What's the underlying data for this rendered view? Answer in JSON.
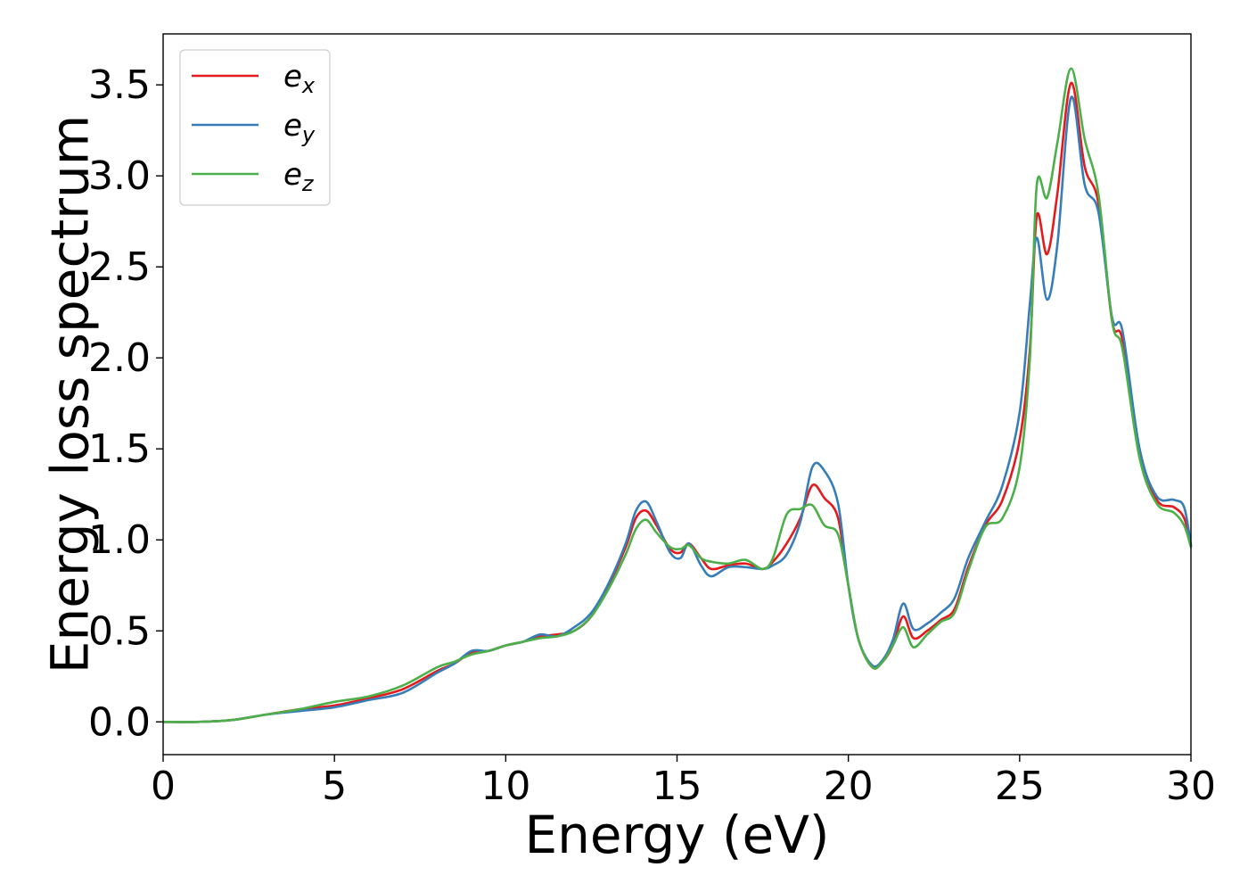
{
  "chart_data": {
    "type": "line",
    "title": "",
    "xlabel": "Energy (eV)",
    "ylabel": "Energy loss spectrum",
    "xlim": [
      0,
      30
    ],
    "ylim": [
      -0.18,
      3.78
    ],
    "x_ticks": [
      "0",
      "5",
      "10",
      "15",
      "20",
      "25",
      "30"
    ],
    "y_ticks": [
      "0.0",
      "0.5",
      "1.0",
      "1.5",
      "2.0",
      "2.5",
      "3.0",
      "3.5"
    ],
    "grid": false,
    "legend_position": "top-left",
    "series": [
      {
        "name": "e",
        "subscript": "x",
        "color": "#e41a1c",
        "points": [
          [
            0,
            0
          ],
          [
            1,
            0
          ],
          [
            2,
            0.01
          ],
          [
            3,
            0.04
          ],
          [
            4,
            0.07
          ],
          [
            5,
            0.09
          ],
          [
            6,
            0.13
          ],
          [
            7,
            0.18
          ],
          [
            8,
            0.28
          ],
          [
            8.5,
            0.32
          ],
          [
            9,
            0.38
          ],
          [
            9.5,
            0.39
          ],
          [
            10,
            0.42
          ],
          [
            10.5,
            0.44
          ],
          [
            11,
            0.47
          ],
          [
            11.5,
            0.48
          ],
          [
            12,
            0.5
          ],
          [
            12.5,
            0.58
          ],
          [
            13,
            0.75
          ],
          [
            13.5,
            0.96
          ],
          [
            13.8,
            1.12
          ],
          [
            14.1,
            1.16
          ],
          [
            14.4,
            1.08
          ],
          [
            14.8,
            0.95
          ],
          [
            15.1,
            0.93
          ],
          [
            15.35,
            0.98
          ],
          [
            15.7,
            0.9
          ],
          [
            16,
            0.84
          ],
          [
            16.5,
            0.86
          ],
          [
            17,
            0.87
          ],
          [
            17.5,
            0.84
          ],
          [
            17.8,
            0.88
          ],
          [
            18.2,
            0.98
          ],
          [
            18.6,
            1.12
          ],
          [
            18.95,
            1.3
          ],
          [
            19.3,
            1.23
          ],
          [
            19.7,
            1.12
          ],
          [
            20,
            0.75
          ],
          [
            20.3,
            0.45
          ],
          [
            20.7,
            0.3
          ],
          [
            21,
            0.33
          ],
          [
            21.3,
            0.42
          ],
          [
            21.6,
            0.58
          ],
          [
            21.9,
            0.46
          ],
          [
            22.3,
            0.5
          ],
          [
            22.7,
            0.56
          ],
          [
            23.1,
            0.62
          ],
          [
            23.5,
            0.85
          ],
          [
            24,
            1.08
          ],
          [
            24.5,
            1.22
          ],
          [
            25,
            1.55
          ],
          [
            25.3,
            2.05
          ],
          [
            25.5,
            2.78
          ],
          [
            25.8,
            2.57
          ],
          [
            26.1,
            2.9
          ],
          [
            26.5,
            3.51
          ],
          [
            26.9,
            3.05
          ],
          [
            27.3,
            2.85
          ],
          [
            27.7,
            2.2
          ],
          [
            28,
            2.1
          ],
          [
            28.5,
            1.5
          ],
          [
            29,
            1.22
          ],
          [
            29.5,
            1.18
          ],
          [
            29.8,
            1.12
          ],
          [
            30,
            0.97
          ]
        ]
      },
      {
        "name": "e",
        "subscript": "y",
        "color": "#377eb8",
        "points": [
          [
            0,
            0
          ],
          [
            1,
            0
          ],
          [
            2,
            0.01
          ],
          [
            3,
            0.04
          ],
          [
            4,
            0.06
          ],
          [
            5,
            0.08
          ],
          [
            6,
            0.12
          ],
          [
            7,
            0.16
          ],
          [
            8,
            0.27
          ],
          [
            8.5,
            0.32
          ],
          [
            9,
            0.39
          ],
          [
            9.5,
            0.39
          ],
          [
            10,
            0.42
          ],
          [
            10.5,
            0.44
          ],
          [
            11,
            0.48
          ],
          [
            11.5,
            0.47
          ],
          [
            12,
            0.52
          ],
          [
            12.5,
            0.6
          ],
          [
            13,
            0.76
          ],
          [
            13.5,
            0.98
          ],
          [
            13.8,
            1.16
          ],
          [
            14.1,
            1.21
          ],
          [
            14.4,
            1.1
          ],
          [
            14.8,
            0.93
          ],
          [
            15.1,
            0.9
          ],
          [
            15.35,
            0.98
          ],
          [
            15.7,
            0.86
          ],
          [
            16,
            0.8
          ],
          [
            16.5,
            0.85
          ],
          [
            17,
            0.85
          ],
          [
            17.5,
            0.84
          ],
          [
            17.8,
            0.86
          ],
          [
            18.2,
            0.92
          ],
          [
            18.6,
            1.1
          ],
          [
            18.95,
            1.4
          ],
          [
            19.3,
            1.38
          ],
          [
            19.7,
            1.2
          ],
          [
            20,
            0.75
          ],
          [
            20.3,
            0.45
          ],
          [
            20.7,
            0.31
          ],
          [
            21,
            0.34
          ],
          [
            21.3,
            0.45
          ],
          [
            21.6,
            0.65
          ],
          [
            21.9,
            0.51
          ],
          [
            22.3,
            0.54
          ],
          [
            22.7,
            0.6
          ],
          [
            23.1,
            0.68
          ],
          [
            23.5,
            0.9
          ],
          [
            24,
            1.1
          ],
          [
            24.5,
            1.3
          ],
          [
            25,
            1.7
          ],
          [
            25.3,
            2.3
          ],
          [
            25.5,
            2.66
          ],
          [
            25.8,
            2.32
          ],
          [
            26.1,
            2.62
          ],
          [
            26.5,
            3.43
          ],
          [
            26.9,
            2.95
          ],
          [
            27.3,
            2.8
          ],
          [
            27.7,
            2.22
          ],
          [
            28,
            2.15
          ],
          [
            28.5,
            1.5
          ],
          [
            29,
            1.24
          ],
          [
            29.5,
            1.22
          ],
          [
            29.8,
            1.18
          ],
          [
            30,
            0.97
          ]
        ]
      },
      {
        "name": "e",
        "subscript": "z",
        "color": "#4daf4a",
        "points": [
          [
            0,
            0
          ],
          [
            1,
            0
          ],
          [
            2,
            0.01
          ],
          [
            3,
            0.04
          ],
          [
            4,
            0.07
          ],
          [
            5,
            0.11
          ],
          [
            6,
            0.14
          ],
          [
            7,
            0.2
          ],
          [
            8,
            0.3
          ],
          [
            8.5,
            0.33
          ],
          [
            9,
            0.37
          ],
          [
            9.5,
            0.39
          ],
          [
            10,
            0.42
          ],
          [
            10.5,
            0.44
          ],
          [
            11,
            0.46
          ],
          [
            11.5,
            0.47
          ],
          [
            12,
            0.5
          ],
          [
            12.5,
            0.58
          ],
          [
            13,
            0.73
          ],
          [
            13.5,
            0.92
          ],
          [
            13.8,
            1.06
          ],
          [
            14.1,
            1.11
          ],
          [
            14.4,
            1.04
          ],
          [
            14.8,
            0.96
          ],
          [
            15.1,
            0.95
          ],
          [
            15.35,
            0.97
          ],
          [
            15.7,
            0.9
          ],
          [
            16,
            0.88
          ],
          [
            16.5,
            0.87
          ],
          [
            17,
            0.89
          ],
          [
            17.5,
            0.84
          ],
          [
            17.8,
            0.9
          ],
          [
            18.2,
            1.14
          ],
          [
            18.6,
            1.17
          ],
          [
            18.95,
            1.19
          ],
          [
            19.3,
            1.08
          ],
          [
            19.7,
            1.03
          ],
          [
            20,
            0.75
          ],
          [
            20.3,
            0.45
          ],
          [
            20.7,
            0.3
          ],
          [
            21,
            0.33
          ],
          [
            21.3,
            0.42
          ],
          [
            21.6,
            0.52
          ],
          [
            21.9,
            0.41
          ],
          [
            22.3,
            0.48
          ],
          [
            22.7,
            0.55
          ],
          [
            23.1,
            0.6
          ],
          [
            23.5,
            0.83
          ],
          [
            24,
            1.07
          ],
          [
            24.5,
            1.12
          ],
          [
            25,
            1.4
          ],
          [
            25.3,
            2.0
          ],
          [
            25.5,
            2.95
          ],
          [
            25.8,
            2.88
          ],
          [
            26.1,
            3.18
          ],
          [
            26.5,
            3.59
          ],
          [
            26.9,
            3.2
          ],
          [
            27.3,
            2.9
          ],
          [
            27.7,
            2.2
          ],
          [
            28,
            2.05
          ],
          [
            28.5,
            1.45
          ],
          [
            29,
            1.2
          ],
          [
            29.5,
            1.15
          ],
          [
            29.8,
            1.08
          ],
          [
            30,
            0.96
          ]
        ]
      }
    ]
  }
}
